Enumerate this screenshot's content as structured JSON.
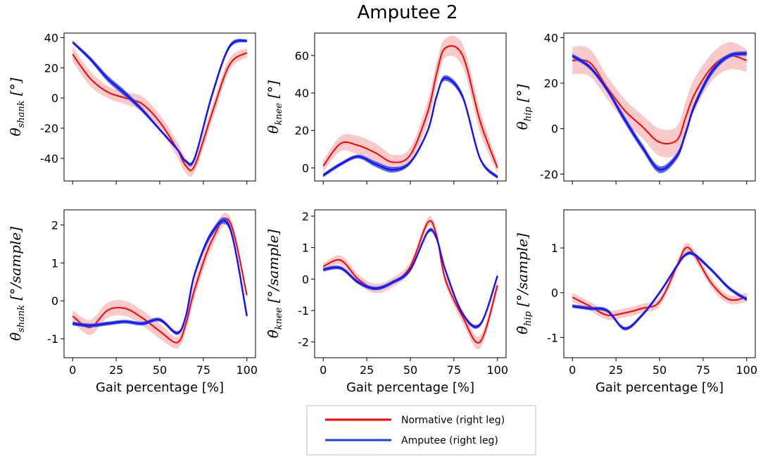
{
  "chart_data": {
    "title": "Amputee 2",
    "type": "line",
    "legend": {
      "placement": "bottom-center",
      "entries": [
        {
          "name": "Normative (right leg)",
          "color": "#ff0000"
        },
        {
          "name": "Amputee (right leg)",
          "color": "#1f3fe6"
        }
      ]
    },
    "colors": {
      "normative": "#ff0000",
      "normative_band": "#f4a6a6",
      "amputee": "#1414ff",
      "amputee_band": "#3a4fd6"
    },
    "x": [
      0,
      10,
      20,
      30,
      40,
      50,
      60,
      65,
      70,
      80,
      90,
      100
    ],
    "xticks": [
      "0",
      "25",
      "50",
      "75",
      "100"
    ],
    "xlim": [
      0,
      100
    ],
    "xlabel": "Gait percentage [%]",
    "panels": [
      {
        "id": "theta-shank",
        "ylabel": {
          "main": "θ",
          "sub": "shank",
          "unit": " [°]"
        },
        "ylim": [
          -55,
          43
        ],
        "yticks": [
          "-40",
          "-20",
          "0",
          "20",
          "40"
        ],
        "yvalues": [
          -40,
          -20,
          0,
          20,
          40
        ],
        "show_xticklabels": false,
        "normative": {
          "mean": [
            29,
            13,
            4,
            0,
            -4,
            -16,
            -34,
            -45,
            -45,
            -10,
            22,
            30
          ],
          "spread": [
            5,
            5,
            4,
            4,
            5,
            5,
            5,
            5,
            4,
            5,
            4,
            3
          ]
        },
        "amputee": {
          "mean": [
            37,
            26,
            13,
            3,
            -8,
            -21,
            -34,
            -42,
            -40,
            2,
            34,
            38
          ],
          "spread": [
            1,
            1.5,
            2,
            2,
            1.5,
            1,
            1,
            1,
            1.5,
            2,
            1.5,
            1
          ]
        }
      },
      {
        "id": "theta-knee",
        "ylabel": {
          "main": "θ",
          "sub": "knee",
          "unit": " [°]"
        },
        "ylim": [
          -7,
          72
        ],
        "yticks": [
          "0",
          "20",
          "40",
          "60"
        ],
        "yvalues": [
          0,
          20,
          40,
          60
        ],
        "show_xticklabels": false,
        "normative": {
          "mean": [
            1,
            13,
            12,
            8,
            3,
            7,
            30,
            50,
            64,
            60,
            25,
            0
          ],
          "spread": [
            3,
            4,
            5,
            5,
            4,
            4,
            6,
            6,
            5,
            6,
            6,
            3
          ]
        },
        "amputee": {
          "mean": [
            -4,
            2,
            6,
            2,
            -1,
            3,
            20,
            38,
            48,
            38,
            5,
            -5
          ],
          "spread": [
            1,
            1,
            1,
            1.5,
            1.5,
            1,
            1,
            1,
            1.5,
            1.5,
            1,
            1
          ]
        }
      },
      {
        "id": "theta-hip",
        "ylabel": {
          "main": "θ",
          "sub": "hip",
          "unit": " [°]"
        },
        "ylim": [
          -23,
          42
        ],
        "yticks": [
          "-20",
          "0",
          "20",
          "40"
        ],
        "yvalues": [
          -20,
          0,
          20,
          40
        ],
        "show_xticklabels": false,
        "normative": {
          "mean": [
            30,
            29,
            18,
            8,
            1,
            -6,
            -5,
            5,
            15,
            27,
            32,
            30
          ],
          "spread": [
            6,
            6,
            5,
            5,
            5,
            6,
            6,
            7,
            7,
            6,
            6,
            5
          ]
        },
        "amputee": {
          "mean": [
            32,
            27,
            17,
            4,
            -8,
            -18,
            -12,
            -2,
            10,
            25,
            32,
            33
          ],
          "spread": [
            1,
            1,
            1,
            1.5,
            1.5,
            1.5,
            1.5,
            1.5,
            1.5,
            1.5,
            1,
            1
          ]
        }
      },
      {
        "id": "thetadot-shank",
        "ylabel": {
          "main": "θ̇",
          "sub": "shank",
          "unit": " [°/sample]"
        },
        "ylim": [
          -1.5,
          2.4
        ],
        "yticks": [
          "-1",
          "0",
          "1",
          "2"
        ],
        "yvalues": [
          -1,
          0,
          1,
          2
        ],
        "show_xticklabels": true,
        "normative": {
          "mean": [
            -0.4,
            -0.7,
            -0.25,
            -0.2,
            -0.45,
            -0.8,
            -1.1,
            -0.6,
            0.3,
            1.6,
            2.1,
            0.15
          ],
          "spread": [
            0.15,
            0.2,
            0.2,
            0.2,
            0.2,
            0.2,
            0.15,
            0.2,
            0.2,
            0.2,
            0.15,
            0.1
          ]
        },
        "amputee": {
          "mean": [
            -0.6,
            -0.65,
            -0.6,
            -0.55,
            -0.6,
            -0.5,
            -0.85,
            -0.4,
            0.7,
            1.8,
            1.95,
            -0.4
          ],
          "spread": [
            0.05,
            0.05,
            0.05,
            0.05,
            0.05,
            0.05,
            0.05,
            0.05,
            0.08,
            0.08,
            0.08,
            0.05
          ]
        }
      },
      {
        "id": "thetadot-knee",
        "ylabel": {
          "main": "θ̇",
          "sub": "knee",
          "unit": " [°/sample]"
        },
        "ylim": [
          -2.5,
          2.2
        ],
        "yticks": [
          "-2",
          "-1",
          "0",
          "1",
          "2"
        ],
        "yvalues": [
          -2,
          -1,
          0,
          1,
          2
        ],
        "show_xticklabels": true,
        "normative": {
          "mean": [
            0.4,
            0.6,
            0.0,
            -0.3,
            -0.1,
            0.4,
            1.8,
            1.4,
            0.0,
            -1.2,
            -2.0,
            -0.2
          ],
          "spread": [
            0.1,
            0.15,
            0.15,
            0.15,
            0.15,
            0.15,
            0.15,
            0.15,
            0.15,
            0.2,
            0.2,
            0.15
          ]
        },
        "amputee": {
          "mean": [
            0.3,
            0.35,
            -0.1,
            -0.3,
            -0.1,
            0.3,
            1.5,
            1.3,
            0.3,
            -1.1,
            -1.45,
            0.1
          ],
          "spread": [
            0.06,
            0.06,
            0.06,
            0.06,
            0.06,
            0.06,
            0.06,
            0.06,
            0.06,
            0.06,
            0.06,
            0.06
          ]
        }
      },
      {
        "id": "thetadot-hip",
        "ylabel": {
          "main": "θ̇",
          "sub": "hip",
          "unit": " [°/sample]"
        },
        "ylim": [
          -1.45,
          1.85
        ],
        "yticks": [
          "-1",
          "0",
          "1"
        ],
        "yvalues": [
          -1,
          0,
          1
        ],
        "show_xticklabels": true,
        "normative": {
          "mean": [
            -0.1,
            -0.3,
            -0.5,
            -0.45,
            -0.35,
            -0.2,
            0.6,
            1.0,
            0.85,
            0.2,
            -0.15,
            -0.1
          ],
          "spread": [
            0.1,
            0.1,
            0.1,
            0.1,
            0.1,
            0.1,
            0.1,
            0.1,
            0.1,
            0.1,
            0.1,
            0.1
          ]
        },
        "amputee": {
          "mean": [
            -0.3,
            -0.35,
            -0.4,
            -0.8,
            -0.5,
            0.0,
            0.6,
            0.85,
            0.85,
            0.5,
            0.1,
            -0.15
          ],
          "spread": [
            0.04,
            0.04,
            0.04,
            0.04,
            0.04,
            0.04,
            0.04,
            0.04,
            0.04,
            0.04,
            0.04,
            0.04
          ]
        }
      }
    ]
  }
}
